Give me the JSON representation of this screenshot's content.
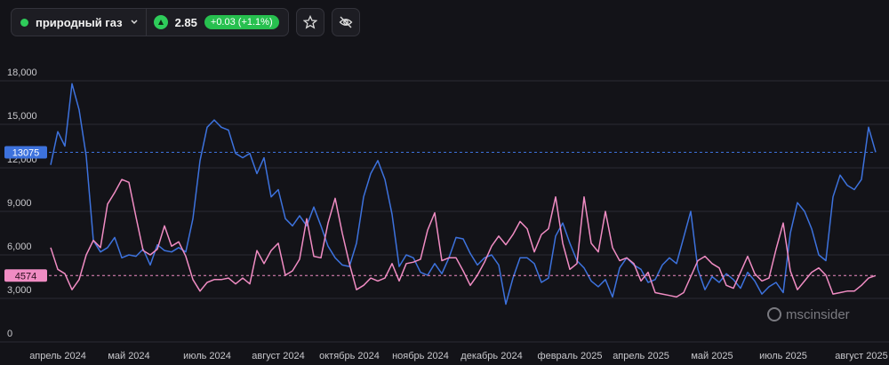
{
  "header": {
    "instrument": "природный газ",
    "price": "2.85",
    "change": "+0.03 (+1.1%)"
  },
  "watermark": "mscinsider",
  "chart_data": {
    "type": "line",
    "categories": [
      null,
      "апрель 2024",
      null,
      null,
      null,
      null,
      null,
      null,
      null,
      null,
      null,
      "май 2024",
      null,
      null,
      null,
      null,
      null,
      null,
      null,
      null,
      null,
      null,
      "июль 2024",
      null,
      null,
      null,
      null,
      null,
      null,
      null,
      null,
      null,
      "август 2024",
      null,
      null,
      null,
      null,
      null,
      null,
      null,
      null,
      null,
      "октябрь 2024",
      null,
      null,
      null,
      null,
      null,
      null,
      null,
      null,
      null,
      "ноябрь 2024",
      null,
      null,
      null,
      null,
      null,
      null,
      null,
      null,
      null,
      "декабрь 2024",
      null,
      null,
      null,
      null,
      null,
      null,
      null,
      null,
      null,
      null,
      "февраль 2025",
      null,
      null,
      null,
      null,
      null,
      null,
      null,
      null,
      null,
      "апрель 2025",
      null,
      null,
      null,
      null,
      null,
      null,
      null,
      null,
      null,
      "май 2025",
      null,
      null,
      null,
      null,
      null,
      null,
      null,
      null,
      null,
      "июль 2025",
      null,
      null,
      null,
      null,
      null,
      null,
      null,
      null,
      null,
      null,
      "август 2025",
      null,
      null
    ],
    "series": [
      {
        "color": "#3d72dd",
        "values": [
          12200,
          14500,
          13500,
          17800,
          16000,
          12800,
          7000,
          6200,
          6500,
          7200,
          5800,
          6000,
          5900,
          6400,
          5300,
          6700,
          6300,
          6200,
          6500,
          6200,
          8500,
          12500,
          14800,
          15300,
          14800,
          14600,
          13000,
          12700,
          13000,
          11600,
          12700,
          10000,
          10500,
          8500,
          8000,
          8700,
          8000,
          9300,
          8000,
          6600,
          5800,
          5300,
          5200,
          6800,
          10000,
          11600,
          12500,
          11200,
          8800,
          5200,
          6000,
          5800,
          4800,
          4600,
          5400,
          4700,
          5800,
          7200,
          7100,
          6100,
          5300,
          5800,
          6000,
          5300,
          2600,
          4400,
          5800,
          5800,
          5400,
          4100,
          4400,
          7300,
          8200,
          6800,
          5600,
          5100,
          4200,
          3800,
          4300,
          3100,
          5100,
          5800,
          5300,
          5000,
          4100,
          4300,
          5300,
          5800,
          5400,
          7200,
          9000,
          5000,
          3600,
          4500,
          4100,
          4700,
          4300,
          3700,
          4800,
          4200,
          3300,
          3800,
          4100,
          3400,
          7500,
          9600,
          9000,
          7800,
          6000,
          5600,
          10000,
          11500,
          10800,
          10500,
          11200,
          14800,
          13075
        ]
      },
      {
        "color": "#f08cc3",
        "values": [
          6500,
          5000,
          4700,
          3600,
          4300,
          6000,
          7000,
          6500,
          9500,
          10300,
          11200,
          11000,
          8600,
          6300,
          6000,
          6400,
          8000,
          6600,
          6900,
          5900,
          4300,
          3500,
          4100,
          4300,
          4300,
          4400,
          4000,
          4400,
          4000,
          6300,
          5400,
          6300,
          6800,
          4600,
          4900,
          5700,
          8500,
          5900,
          5800,
          8200,
          9900,
          7500,
          5400,
          3600,
          3900,
          4400,
          4200,
          4400,
          5400,
          4200,
          5400,
          5500,
          5700,
          7700,
          8900,
          5600,
          5800,
          5800,
          4900,
          3900,
          4600,
          5500,
          6600,
          7300,
          6700,
          7400,
          8300,
          7800,
          6200,
          7400,
          7800,
          10000,
          6800,
          5000,
          5400,
          10000,
          6800,
          6200,
          9000,
          6500,
          5600,
          5800,
          5400,
          4200,
          4800,
          3400,
          3300,
          3200,
          3100,
          3400,
          4500,
          5600,
          5900,
          5400,
          5100,
          3900,
          3700,
          4800,
          5900,
          4700,
          4200,
          4400,
          6400,
          8200,
          4900,
          3600,
          4200,
          4800,
          5100,
          4600,
          3300,
          3400,
          3500,
          3500,
          3900,
          4400,
          4574
        ]
      }
    ],
    "ylim": [
      0,
      18000
    ],
    "yticks": [
      0,
      {
        "value": 3000,
        "label": "3,000"
      },
      {
        "value": 6000,
        "label": "6,000"
      },
      {
        "value": 9000,
        "label": "9,000"
      },
      {
        "value": 12000,
        "label": "12,000"
      },
      {
        "value": 15000,
        "label": "15,000"
      },
      {
        "value": 18000,
        "label": "18,000"
      }
    ],
    "grid": true
  }
}
